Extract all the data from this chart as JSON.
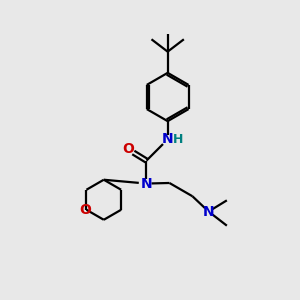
{
  "background_color": "#e8e8e8",
  "bond_color": "#000000",
  "N_color": "#0000cc",
  "O_color": "#cc0000",
  "H_color": "#008080",
  "figsize": [
    3.0,
    3.0
  ],
  "dpi": 100,
  "xlim": [
    0,
    10
  ],
  "ylim": [
    0,
    10
  ]
}
